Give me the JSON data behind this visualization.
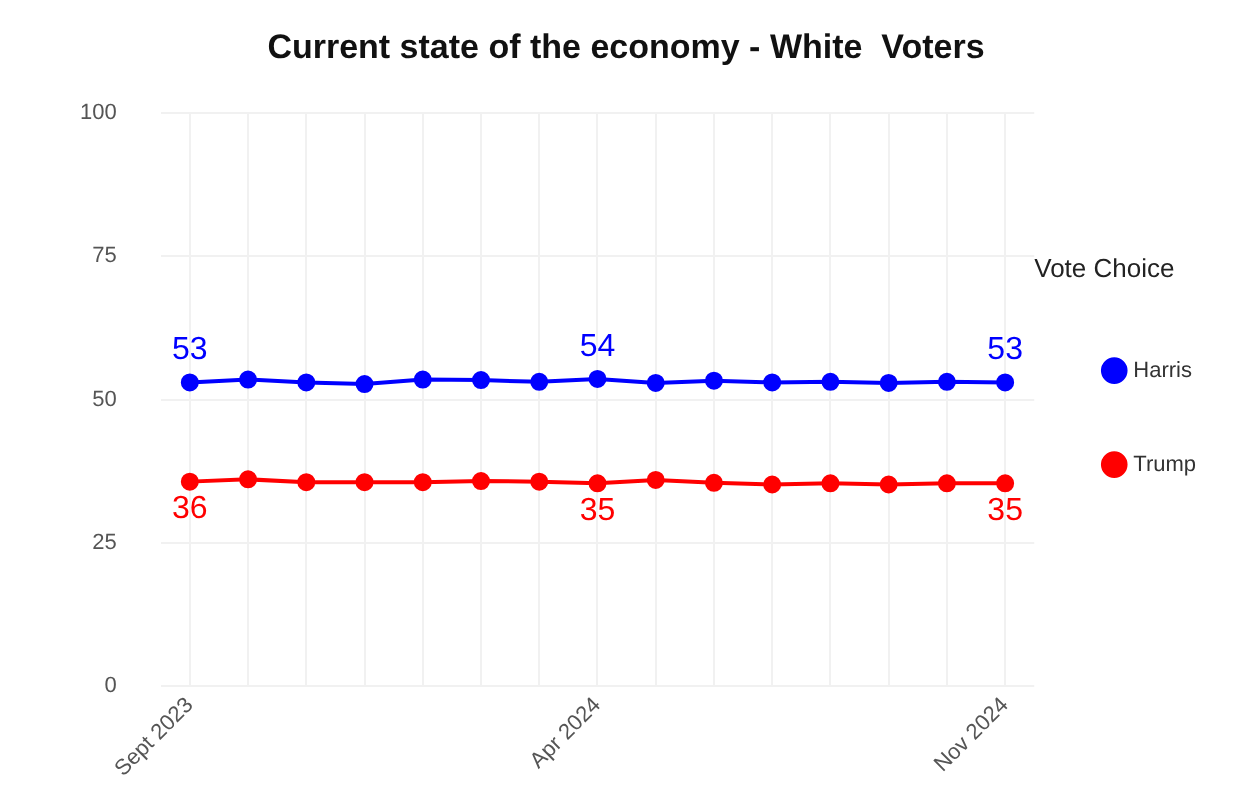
{
  "chart_data": {
    "type": "line",
    "title": "Current state of the economy - White  Voters",
    "legend_title": "Vote Choice",
    "categories": [
      "Sept 2023",
      null,
      null,
      null,
      null,
      null,
      null,
      "Apr 2024",
      null,
      null,
      null,
      null,
      null,
      null,
      "Nov 2024"
    ],
    "series": [
      {
        "name": "Harris",
        "color": "#0000ff",
        "values": [
          53,
          53.5,
          53,
          52.7,
          53.5,
          53.4,
          53.1,
          53.6,
          52.9,
          53.3,
          53,
          53.1,
          52.9,
          53.1,
          53
        ],
        "value_labels": [
          "53",
          null,
          null,
          null,
          null,
          null,
          null,
          "54",
          null,
          null,
          null,
          null,
          null,
          null,
          "53"
        ]
      },
      {
        "name": "Trump",
        "color": "#ff0000",
        "values": [
          35.7,
          36.1,
          35.6,
          35.6,
          35.6,
          35.8,
          35.7,
          35.4,
          36,
          35.5,
          35.2,
          35.4,
          35.2,
          35.4,
          35.4
        ],
        "value_labels": [
          "36",
          null,
          null,
          null,
          null,
          null,
          null,
          "35",
          null,
          null,
          null,
          null,
          null,
          null,
          "35"
        ]
      }
    ],
    "ylim": [
      0,
      100
    ],
    "yticks": [
      0,
      25,
      50,
      75,
      100
    ],
    "grid": true,
    "legend": "right",
    "marker": "circle",
    "line_style": "solid"
  }
}
